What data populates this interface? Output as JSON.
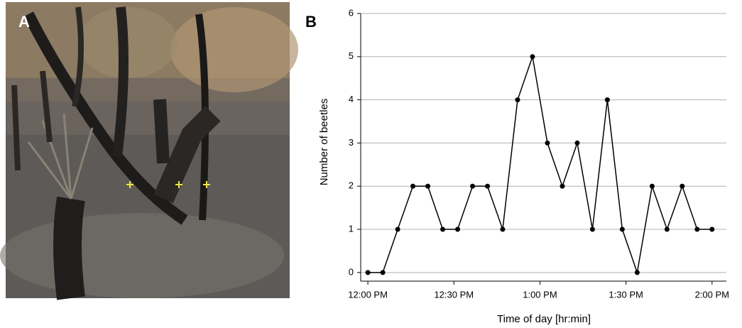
{
  "photo": {
    "panel_label": "A"
  },
  "chart_data": {
    "type": "line",
    "panel_label": "B",
    "x_label": "Time of day [hr:min]",
    "y_label": "Number of beetles",
    "x": [
      0,
      5.2,
      10.4,
      15.7,
      20.9,
      26.1,
      31.3,
      36.5,
      41.7,
      47,
      52.2,
      57.4,
      62.6,
      67.8,
      73,
      78.3,
      83.5,
      88.7,
      93.9,
      99.1,
      104.3,
      109.6,
      114.8,
      120
    ],
    "series": [
      {
        "color": "#000000",
        "values": [
          0,
          0,
          1,
          2,
          2,
          1,
          1,
          2,
          2,
          1,
          4,
          5,
          3,
          2,
          3,
          1,
          4,
          1,
          0,
          2,
          1,
          2,
          1,
          1
        ]
      }
    ],
    "xlim": [
      -2.5,
      125
    ],
    "ylim": [
      -0.2,
      6
    ],
    "xticks": [
      {
        "value": 0,
        "label": "12:00 PM"
      },
      {
        "value": 30,
        "label": "12:30 PM"
      },
      {
        "value": 60,
        "label": "1:00 PM"
      },
      {
        "value": 90,
        "label": "1:30 PM"
      },
      {
        "value": 120,
        "label": "2:00 PM"
      }
    ],
    "yticks": [
      0,
      1,
      2,
      3,
      4,
      5,
      6
    ],
    "grid": true
  }
}
